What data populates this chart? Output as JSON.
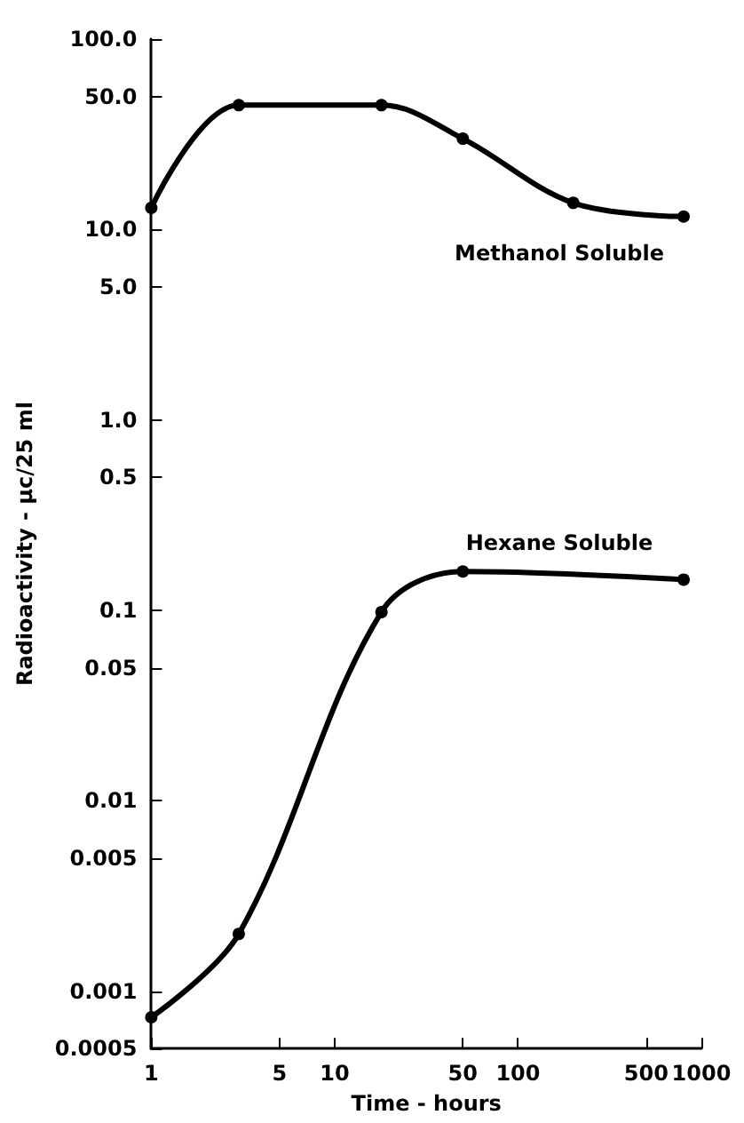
{
  "chart_data": {
    "type": "line",
    "xlabel": "Time - hours",
    "ylabel": "Radioactivity - μc/25 ml",
    "log": "xy",
    "legend": false,
    "grid": false,
    "marker": "circle",
    "line_style": "solid",
    "xlim": [
      1,
      1000
    ],
    "xticks": [
      1,
      5,
      10,
      50,
      100,
      500,
      1000
    ],
    "ylim": [
      0.0005,
      100
    ],
    "yticks": [
      {
        "value": 100,
        "label": "100.0"
      },
      {
        "value": 50,
        "label": "50.0"
      },
      {
        "value": 10,
        "label": "10.0"
      },
      {
        "value": 5,
        "label": "5.0"
      },
      {
        "value": 1,
        "label": "1.0"
      },
      0.5,
      0.1,
      0.05,
      0.01,
      0.005,
      0.001,
      0.0005
    ],
    "series": [
      {
        "name": "Methanol Soluble",
        "color": "#000000",
        "x": [
          1,
          3,
          18,
          50,
          200,
          800
        ],
        "values": [
          13,
          45,
          45,
          30,
          13.8,
          11.7
        ]
      },
      {
        "name": "Hexane Soluble",
        "color": "#000000",
        "x": [
          1,
          3,
          18,
          50,
          800
        ],
        "values": [
          0.00073,
          0.002,
          0.098,
          0.16,
          0.145
        ]
      }
    ]
  }
}
